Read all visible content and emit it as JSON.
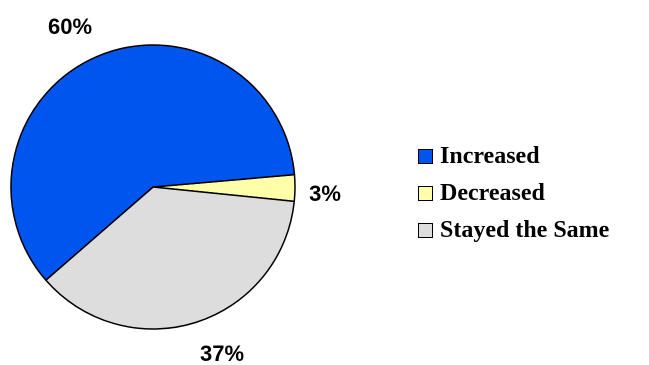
{
  "chart_data": {
    "type": "pie",
    "categories": [
      "Increased",
      "Decreased",
      "Stayed the Same"
    ],
    "values": [
      60,
      3,
      37
    ],
    "labels": [
      "60%",
      "3%",
      "37%"
    ],
    "colors": [
      "#0055ee",
      "#ffffaa",
      "#dddddd"
    ],
    "title": "",
    "legend_placement": "right"
  }
}
